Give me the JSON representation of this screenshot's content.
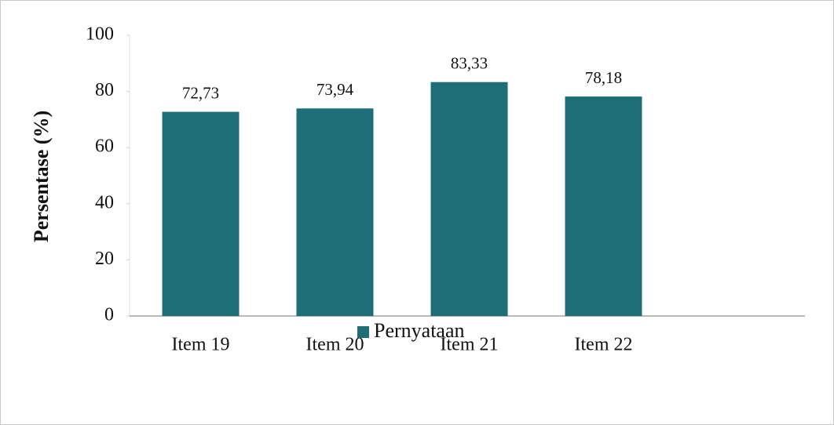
{
  "chart_data": {
    "type": "bar",
    "y_label": "Persentase (%)",
    "categories": [
      "Item 19",
      "Item 20",
      "Item 21",
      "Item 22"
    ],
    "series": [
      {
        "name": "Pernyataan",
        "color": "#1e6e78",
        "values": [
          72.73,
          73.94,
          83.33,
          78.18
        ],
        "value_labels": [
          "72,73",
          "73,94",
          "83,33",
          "78,18"
        ]
      }
    ],
    "ylim": [
      0,
      100
    ],
    "yticks": [
      0,
      20,
      40,
      60,
      80,
      100
    ],
    "legend": "bottom"
  }
}
